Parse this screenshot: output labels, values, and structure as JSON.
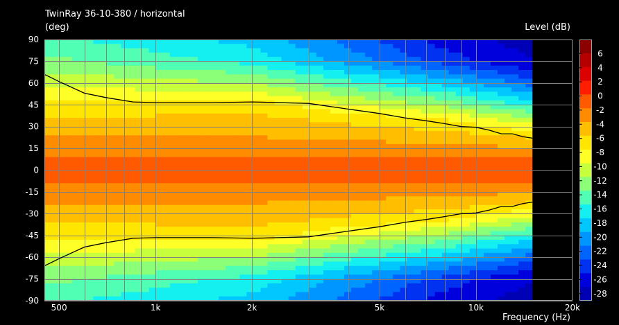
{
  "chart_data": {
    "type": "heatmap",
    "title": "TwinRay 36-10-380 / horizontal",
    "y_unit_label": "(deg)",
    "xlabel": "Frequency  (Hz)",
    "colorbar_label": "Level  (dB)",
    "x_scale": "log",
    "xlim": [
      450,
      20000
    ],
    "ylim": [
      -90,
      90
    ],
    "x_ticks": [
      500,
      1000,
      2000,
      5000,
      10000,
      20000
    ],
    "x_tick_labels": [
      "500",
      "1k",
      "2k",
      "5k",
      "10k",
      "20k"
    ],
    "y_ticks": [
      90,
      75,
      60,
      45,
      30,
      15,
      0,
      -15,
      -30,
      -45,
      -60,
      -75,
      -90
    ],
    "y_tick_labels": [
      "90",
      "75",
      "60",
      "45",
      "30",
      "15",
      "0",
      "-15",
      "-30",
      "-45",
      "-60",
      "-75",
      "-90"
    ],
    "data_x_max": 15000,
    "colorbar": {
      "ticks": [
        6,
        4,
        2,
        0,
        -2,
        -4,
        -6,
        -8,
        -10,
        -12,
        -14,
        -16,
        -18,
        -20,
        -22,
        -24,
        -26,
        -28
      ],
      "range": [
        -29,
        8
      ],
      "colors": [
        "#8b0000",
        "#b40000",
        "#dc0000",
        "#ff1e00",
        "#ff5a00",
        "#ff8c00",
        "#ffbe00",
        "#ffe600",
        "#ffff28",
        "#c8ff3c",
        "#8cff78",
        "#50ffb4",
        "#14f0f0",
        "#00c8ff",
        "#0096ff",
        "#0064ff",
        "#0032f0",
        "#0000dc",
        "#0000b4"
      ]
    },
    "iso_contour_6db": {
      "freqs": [
        450,
        500,
        600,
        700,
        850,
        1000,
        1500,
        2000,
        3000,
        4000,
        5000,
        6000,
        7000,
        8000,
        9000,
        10000,
        11000,
        12000,
        13000,
        14000,
        15000
      ],
      "angles": [
        66,
        61,
        53,
        50,
        47,
        46.5,
        46.5,
        47,
        46,
        42,
        39,
        36,
        34,
        32,
        30,
        29.5,
        27.5,
        25,
        25,
        23,
        22
      ]
    },
    "level_profile": {
      "angles": [
        0,
        8,
        10,
        15,
        25,
        35,
        45,
        55,
        65,
        75,
        90
      ],
      "db_at_500": [
        0,
        0,
        -2,
        -2.5,
        -4,
        -5.5,
        -7,
        -9,
        -11,
        -13,
        -15
      ],
      "db_at_2000": [
        0,
        0,
        -2,
        -2.5,
        -4,
        -5,
        -6.5,
        -10,
        -13,
        -16,
        -18
      ],
      "db_at_8000": [
        0,
        0,
        -2,
        -3,
        -5,
        -7.5,
        -12,
        -16,
        -20,
        -24,
        -26
      ],
      "db_at_15000": [
        0,
        0,
        -2,
        -3.5,
        -6.5,
        -11,
        -16,
        -20,
        -24,
        -27,
        -28
      ]
    }
  }
}
